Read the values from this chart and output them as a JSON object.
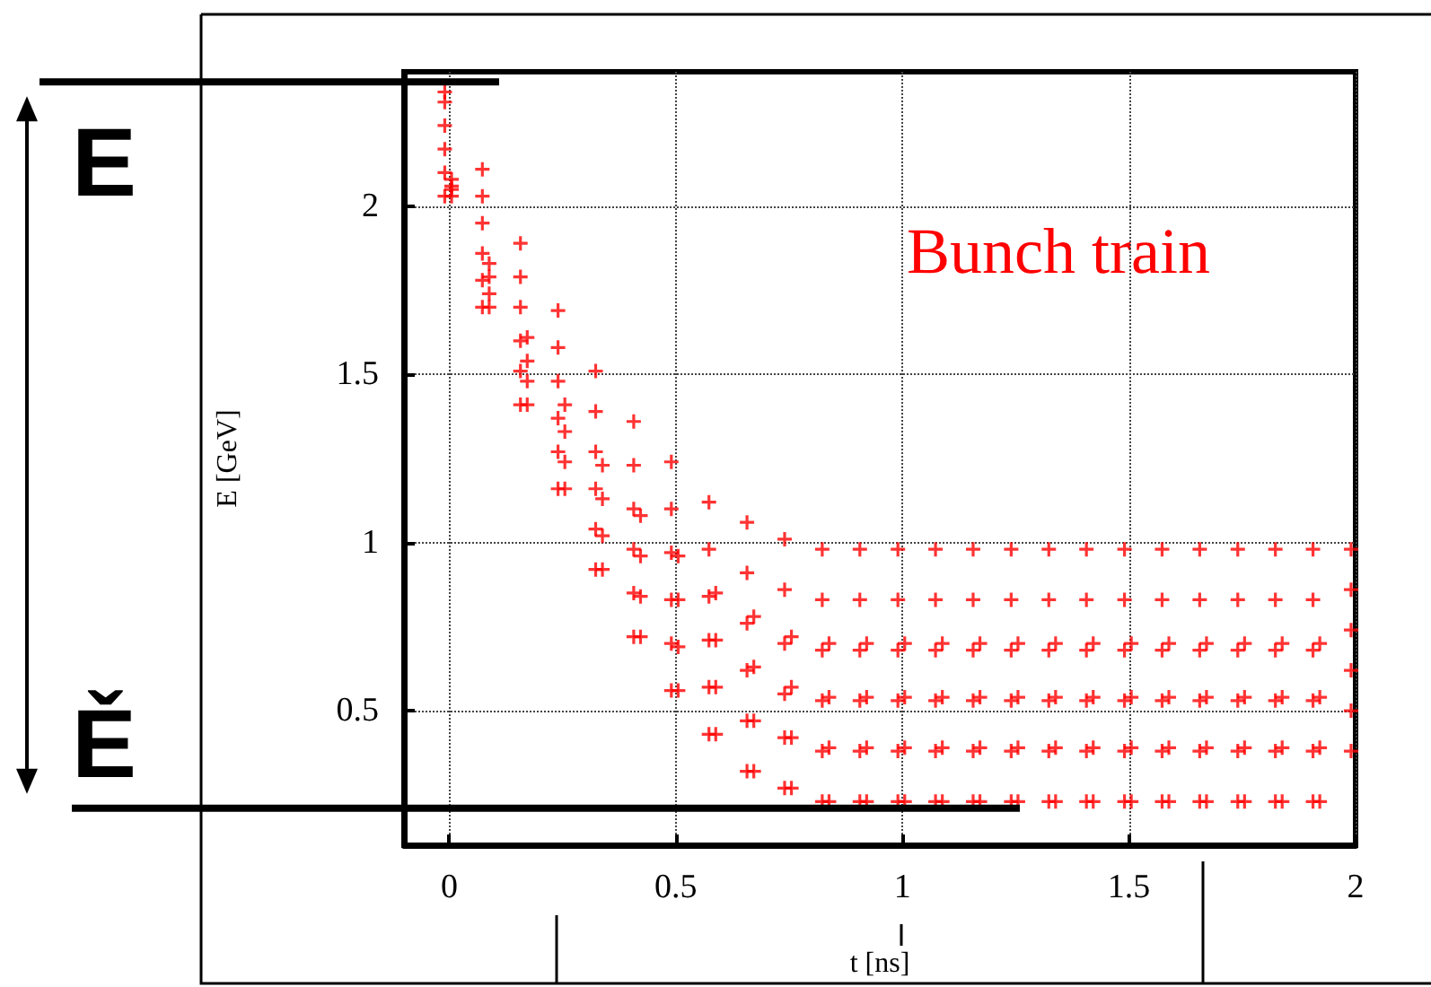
{
  "chart_data": {
    "type": "scatter",
    "xlabel": "t [ns]",
    "ylabel": "E [GeV]",
    "annotations": [
      "Bunch train"
    ],
    "xlim": [
      -0.1,
      2.0
    ],
    "xticks": [
      0,
      0.5,
      1,
      1.5,
      2
    ],
    "ylim": [
      0.1,
      2.4
    ],
    "yticks": [
      0.5,
      1,
      1.5,
      2
    ],
    "grid": true,
    "marker": "cross",
    "ref_lines": [
      {
        "axis": "y",
        "value": 2.37,
        "label": "E",
        "color": "#000000"
      },
      {
        "axis": "y",
        "value": 0.21,
        "label": "Ě",
        "color": "#000000"
      }
    ],
    "series": [
      {
        "color": "#ff0000",
        "x": [
          -0.01,
          -0.01,
          -0.01,
          -0.01,
          -0.01,
          -0.01,
          0.005,
          0.005,
          0.005,
          0.005
        ],
        "values": [
          2.34,
          2.31,
          2.24,
          2.17,
          2.1,
          2.03,
          2.08,
          2.06,
          2.05,
          2.03
        ]
      },
      {
        "color": "#ff0000",
        "x": [
          0.073,
          0.073,
          0.073,
          0.073,
          0.073,
          0.073,
          0.088,
          0.088,
          0.088,
          0.088
        ],
        "values": [
          2.11,
          2.03,
          1.95,
          1.86,
          1.78,
          1.7,
          1.83,
          1.79,
          1.74,
          1.7
        ]
      },
      {
        "color": "#ff0000",
        "x": [
          0.157,
          0.157,
          0.157,
          0.157,
          0.157,
          0.157,
          0.172,
          0.172,
          0.172,
          0.172
        ],
        "values": [
          1.89,
          1.79,
          1.7,
          1.6,
          1.51,
          1.41,
          1.61,
          1.54,
          1.48,
          1.41
        ]
      },
      {
        "color": "#ff0000",
        "x": [
          0.24,
          0.24,
          0.24,
          0.24,
          0.24,
          0.24,
          0.255,
          0.255,
          0.255,
          0.255
        ],
        "values": [
          1.69,
          1.58,
          1.48,
          1.37,
          1.27,
          1.16,
          1.41,
          1.33,
          1.24,
          1.16
        ]
      },
      {
        "color": "#ff0000",
        "x": [
          0.323,
          0.323,
          0.323,
          0.323,
          0.323,
          0.323,
          0.338,
          0.338,
          0.338,
          0.338
        ],
        "values": [
          1.51,
          1.39,
          1.27,
          1.16,
          1.04,
          0.92,
          1.23,
          1.13,
          1.02,
          0.92
        ]
      },
      {
        "color": "#ff0000",
        "x": [
          0.407,
          0.407,
          0.407,
          0.407,
          0.407,
          0.407,
          0.422,
          0.422,
          0.422,
          0.422
        ],
        "values": [
          1.36,
          1.23,
          1.1,
          0.98,
          0.85,
          0.72,
          1.08,
          0.96,
          0.84,
          0.72
        ]
      },
      {
        "color": "#ff0000",
        "x": [
          0.49,
          0.49,
          0.49,
          0.49,
          0.49,
          0.49,
          0.505,
          0.505,
          0.505,
          0.505
        ],
        "values": [
          1.24,
          1.1,
          0.97,
          0.83,
          0.7,
          0.56,
          0.96,
          0.83,
          0.69,
          0.56
        ]
      },
      {
        "color": "#ff0000",
        "x": [
          0.573,
          0.573,
          0.573,
          0.573,
          0.573,
          0.573,
          0.588,
          0.588,
          0.588,
          0.588
        ],
        "values": [
          1.12,
          0.98,
          0.84,
          0.71,
          0.57,
          0.43,
          0.85,
          0.71,
          0.57,
          0.43
        ]
      },
      {
        "color": "#ff0000",
        "x": [
          0.657,
          0.657,
          0.657,
          0.657,
          0.657,
          0.657,
          0.672,
          0.672,
          0.672,
          0.672
        ],
        "values": [
          1.06,
          0.91,
          0.76,
          0.62,
          0.47,
          0.32,
          0.78,
          0.63,
          0.47,
          0.32
        ]
      },
      {
        "color": "#ff0000",
        "x": [
          0.74,
          0.74,
          0.74,
          0.74,
          0.74,
          0.74,
          0.755,
          0.755,
          0.755,
          0.755
        ],
        "values": [
          1.01,
          0.86,
          0.7,
          0.55,
          0.42,
          0.27,
          0.72,
          0.57,
          0.42,
          0.27
        ]
      },
      {
        "color": "#ff0000",
        "x": [
          0.823,
          0.823,
          0.823,
          0.823,
          0.823,
          0.823,
          0.838,
          0.838,
          0.838,
          0.838
        ],
        "values": [
          0.98,
          0.83,
          0.68,
          0.53,
          0.38,
          0.23,
          0.7,
          0.54,
          0.39,
          0.23
        ]
      },
      {
        "color": "#ff0000",
        "x": [
          0.906,
          0.906,
          0.906,
          0.906,
          0.906,
          0.906,
          0.921,
          0.921,
          0.921,
          0.921
        ],
        "values": [
          0.98,
          0.83,
          0.68,
          0.53,
          0.38,
          0.23,
          0.7,
          0.54,
          0.39,
          0.23
        ]
      },
      {
        "color": "#ff0000",
        "x": [
          0.99,
          0.99,
          0.99,
          0.99,
          0.99,
          0.99,
          1.005,
          1.005,
          1.005,
          1.005
        ],
        "values": [
          0.98,
          0.83,
          0.68,
          0.53,
          0.38,
          0.23,
          0.7,
          0.54,
          0.39,
          0.23
        ]
      },
      {
        "color": "#ff0000",
        "x": [
          1.073,
          1.073,
          1.073,
          1.073,
          1.073,
          1.073,
          1.088,
          1.088,
          1.088,
          1.088
        ],
        "values": [
          0.98,
          0.83,
          0.68,
          0.53,
          0.38,
          0.23,
          0.7,
          0.54,
          0.39,
          0.23
        ]
      },
      {
        "color": "#ff0000",
        "x": [
          1.156,
          1.156,
          1.156,
          1.156,
          1.156,
          1.156,
          1.171,
          1.171,
          1.171,
          1.171
        ],
        "values": [
          0.98,
          0.83,
          0.68,
          0.53,
          0.38,
          0.23,
          0.7,
          0.54,
          0.39,
          0.23
        ]
      },
      {
        "color": "#ff0000",
        "x": [
          1.24,
          1.24,
          1.24,
          1.24,
          1.24,
          1.24,
          1.255,
          1.255,
          1.255,
          1.255
        ],
        "values": [
          0.98,
          0.83,
          0.68,
          0.53,
          0.38,
          0.23,
          0.7,
          0.54,
          0.39,
          0.23
        ]
      },
      {
        "color": "#ff0000",
        "x": [
          1.323,
          1.323,
          1.323,
          1.323,
          1.323,
          1.323,
          1.338,
          1.338,
          1.338,
          1.338
        ],
        "values": [
          0.98,
          0.83,
          0.68,
          0.53,
          0.38,
          0.23,
          0.7,
          0.54,
          0.39,
          0.23
        ]
      },
      {
        "color": "#ff0000",
        "x": [
          1.406,
          1.406,
          1.406,
          1.406,
          1.406,
          1.406,
          1.421,
          1.421,
          1.421,
          1.421
        ],
        "values": [
          0.98,
          0.83,
          0.68,
          0.53,
          0.38,
          0.23,
          0.7,
          0.54,
          0.39,
          0.23
        ]
      },
      {
        "color": "#ff0000",
        "x": [
          1.49,
          1.49,
          1.49,
          1.49,
          1.49,
          1.49,
          1.505,
          1.505,
          1.505,
          1.505
        ],
        "values": [
          0.98,
          0.83,
          0.68,
          0.53,
          0.38,
          0.23,
          0.7,
          0.54,
          0.39,
          0.23
        ]
      },
      {
        "color": "#ff0000",
        "x": [
          1.573,
          1.573,
          1.573,
          1.573,
          1.573,
          1.573,
          1.588,
          1.588,
          1.588,
          1.588
        ],
        "values": [
          0.98,
          0.83,
          0.68,
          0.53,
          0.38,
          0.23,
          0.7,
          0.54,
          0.39,
          0.23
        ]
      },
      {
        "color": "#ff0000",
        "x": [
          1.656,
          1.656,
          1.656,
          1.656,
          1.656,
          1.656,
          1.671,
          1.671,
          1.671,
          1.671
        ],
        "values": [
          0.98,
          0.83,
          0.68,
          0.53,
          0.38,
          0.23,
          0.7,
          0.54,
          0.39,
          0.23
        ]
      },
      {
        "color": "#ff0000",
        "x": [
          1.74,
          1.74,
          1.74,
          1.74,
          1.74,
          1.74,
          1.755,
          1.755,
          1.755,
          1.755
        ],
        "values": [
          0.98,
          0.83,
          0.68,
          0.53,
          0.38,
          0.23,
          0.7,
          0.54,
          0.39,
          0.23
        ]
      },
      {
        "color": "#ff0000",
        "x": [
          1.823,
          1.823,
          1.823,
          1.823,
          1.823,
          1.823,
          1.838,
          1.838,
          1.838,
          1.838
        ],
        "values": [
          0.98,
          0.83,
          0.68,
          0.53,
          0.38,
          0.23,
          0.7,
          0.54,
          0.39,
          0.23
        ]
      },
      {
        "color": "#ff0000",
        "x": [
          1.906,
          1.906,
          1.906,
          1.906,
          1.906,
          1.906,
          1.921,
          1.921,
          1.921,
          1.921
        ],
        "values": [
          0.98,
          0.83,
          0.68,
          0.53,
          0.38,
          0.23,
          0.7,
          0.54,
          0.39,
          0.23
        ]
      },
      {
        "color": "#ff0000",
        "x": [
          1.99,
          1.99,
          1.99,
          1.99,
          1.99,
          1.99
        ],
        "values": [
          0.98,
          0.86,
          0.74,
          0.62,
          0.5,
          0.38
        ]
      }
    ]
  }
}
